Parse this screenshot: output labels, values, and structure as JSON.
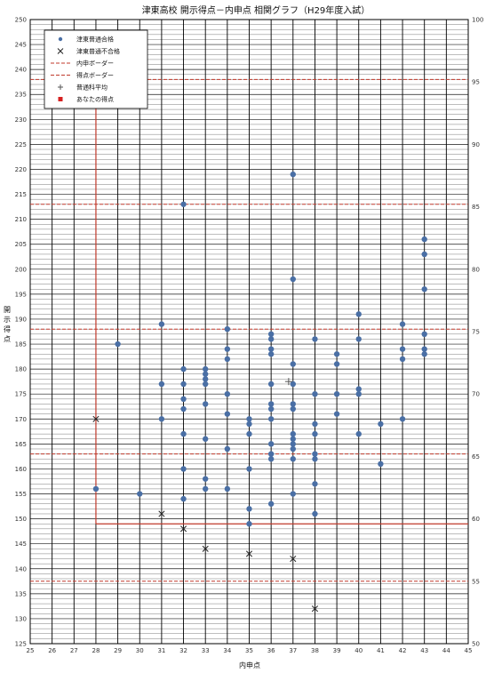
{
  "chart_data": {
    "type": "scatter",
    "title": "津東高校 開示得点－内申点 相関グラフ（H29年度入試）",
    "xlabel": "内申点",
    "ylabel": "開示得点",
    "xlim": [
      25,
      45
    ],
    "ylim": [
      125,
      250
    ],
    "y2lim": [
      50,
      100
    ],
    "xticks": [
      "25",
      "26",
      "27",
      "28",
      "29",
      "30",
      "31",
      "32",
      "33",
      "34",
      "35",
      "36",
      "37",
      "38",
      "39",
      "40",
      "41",
      "42",
      "43",
      "44",
      "45"
    ],
    "yticks": [
      "125",
      "130",
      "135",
      "140",
      "145",
      "150",
      "155",
      "160",
      "165",
      "170",
      "175",
      "180",
      "185",
      "190",
      "195",
      "200",
      "205",
      "210",
      "215",
      "220",
      "225",
      "230",
      "235",
      "240",
      "245",
      "250"
    ],
    "y2ticks": [
      "50",
      "55",
      "60",
      "65",
      "70",
      "75",
      "80",
      "85",
      "90",
      "95",
      "100"
    ],
    "colors": {
      "pass": "#4a6fa5",
      "fail": "#222222",
      "border": "#c0392b",
      "grid": "#000000"
    },
    "legend": {
      "placement": "top-left",
      "items": [
        {
          "label": "津東普通合格",
          "marker": "dot"
        },
        {
          "label": "津東普通不合格",
          "marker": "cross"
        },
        {
          "label": "内申ボーダー",
          "marker": "dashed-line"
        },
        {
          "label": "得点ボーダー",
          "marker": "dashed-line"
        },
        {
          "label": "普通科平均",
          "marker": "plus"
        },
        {
          "label": "あなたの得点",
          "marker": "square"
        }
      ]
    },
    "reference_lines": {
      "horizontal": [
        213,
        188,
        163,
        137.5,
        238
      ],
      "naishin_border_x": 28,
      "score_border_y": 149
    },
    "series": [
      {
        "name": "津東普通合格",
        "points": [
          [
            28,
            156
          ],
          [
            29,
            185
          ],
          [
            30,
            155
          ],
          [
            31,
            189
          ],
          [
            31,
            177
          ],
          [
            31,
            170
          ],
          [
            32,
            213
          ],
          [
            32,
            180
          ],
          [
            32,
            177
          ],
          [
            32,
            174
          ],
          [
            32,
            172
          ],
          [
            32,
            167
          ],
          [
            32,
            160
          ],
          [
            32,
            154
          ],
          [
            33,
            180
          ],
          [
            33,
            179
          ],
          [
            33,
            178
          ],
          [
            33,
            177
          ],
          [
            33,
            173
          ],
          [
            33,
            166
          ],
          [
            33,
            158
          ],
          [
            33,
            156
          ],
          [
            34,
            188
          ],
          [
            34,
            184
          ],
          [
            34,
            182
          ],
          [
            34,
            175
          ],
          [
            34,
            171
          ],
          [
            34,
            164
          ],
          [
            34,
            156
          ],
          [
            35,
            170
          ],
          [
            35,
            169
          ],
          [
            35,
            167
          ],
          [
            35,
            160
          ],
          [
            35,
            152
          ],
          [
            35,
            149
          ],
          [
            36,
            187
          ],
          [
            36,
            186
          ],
          [
            36,
            184
          ],
          [
            36,
            183
          ],
          [
            36,
            177
          ],
          [
            36,
            173
          ],
          [
            36,
            172
          ],
          [
            36,
            170
          ],
          [
            36,
            165
          ],
          [
            36,
            163
          ],
          [
            36,
            162
          ],
          [
            36,
            153
          ],
          [
            37,
            219
          ],
          [
            37,
            198
          ],
          [
            37,
            181
          ],
          [
            37,
            177
          ],
          [
            37,
            173
          ],
          [
            37,
            172
          ],
          [
            37,
            167
          ],
          [
            37,
            166
          ],
          [
            37,
            165
          ],
          [
            37,
            164
          ],
          [
            37,
            162
          ],
          [
            37,
            155
          ],
          [
            38,
            186
          ],
          [
            38,
            175
          ],
          [
            38,
            169
          ],
          [
            38,
            167
          ],
          [
            38,
            163
          ],
          [
            38,
            162
          ],
          [
            38,
            157
          ],
          [
            38,
            151
          ],
          [
            39,
            183
          ],
          [
            39,
            181
          ],
          [
            39,
            175
          ],
          [
            39,
            171
          ],
          [
            40,
            191
          ],
          [
            40,
            186
          ],
          [
            40,
            176
          ],
          [
            40,
            175
          ],
          [
            40,
            167
          ],
          [
            41,
            169
          ],
          [
            41,
            161
          ],
          [
            42,
            189
          ],
          [
            42,
            184
          ],
          [
            42,
            182
          ],
          [
            42,
            170
          ],
          [
            43,
            206
          ],
          [
            43,
            203
          ],
          [
            43,
            196
          ],
          [
            43,
            187
          ],
          [
            43,
            184
          ],
          [
            43,
            183
          ]
        ]
      },
      {
        "name": "津東普通不合格",
        "points": [
          [
            28,
            170
          ],
          [
            31,
            151
          ],
          [
            32,
            148
          ],
          [
            33,
            144
          ],
          [
            35,
            143
          ],
          [
            37,
            142
          ],
          [
            38,
            132
          ]
        ]
      },
      {
        "name": "普通科平均",
        "points": [
          [
            36.8,
            177.5
          ]
        ]
      }
    ]
  }
}
